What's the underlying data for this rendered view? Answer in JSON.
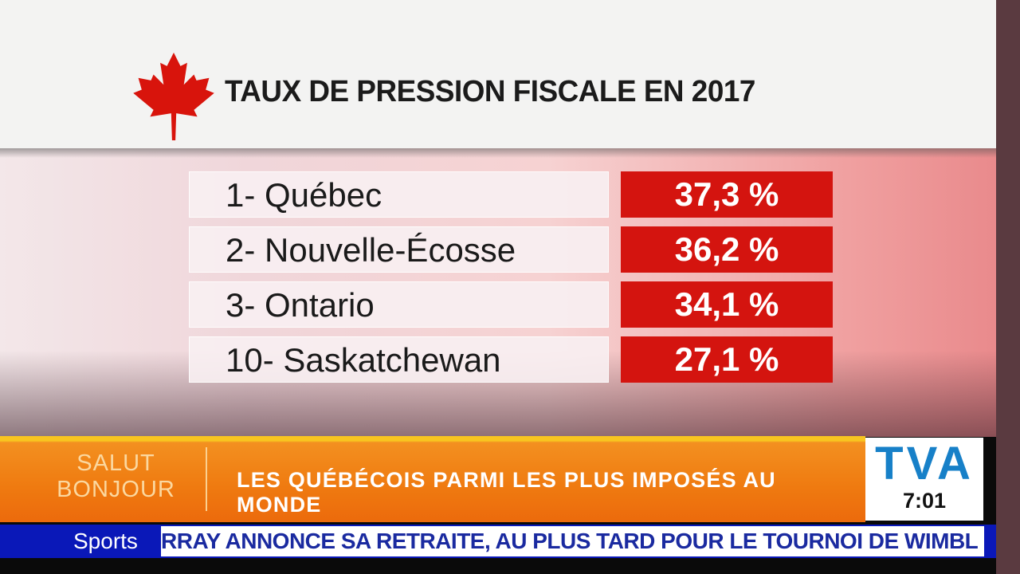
{
  "title": "TAUX DE PRESSION FISCALE EN 2017",
  "ranking": [
    {
      "label": "1- Québec",
      "value": "37,3 %"
    },
    {
      "label": "2- Nouvelle-Écosse",
      "value": "36,2 %"
    },
    {
      "label": "3- Ontario",
      "value": "34,1 %"
    },
    {
      "label": "10- Saskatchewan",
      "value": "27,1 %"
    }
  ],
  "banner": {
    "show_line1": "SALUT",
    "show_line2": "BONJOUR",
    "headline": "LES QUÉBÉCOIS PARMI LES PLUS IMPOSÉS AU MONDE"
  },
  "logo": {
    "brand": "TVA",
    "time": "7:01"
  },
  "ticker": {
    "category": "Sports",
    "text": "RRAY ANNONCE SA RETRAITE, AU PLUS TARD POUR LE TOURNOI DE WIMBL"
  },
  "colors": {
    "value_bg": "#d4140f",
    "banner": "#ef7a10",
    "ticker": "#0a18b8",
    "logo": "#1780c8"
  }
}
